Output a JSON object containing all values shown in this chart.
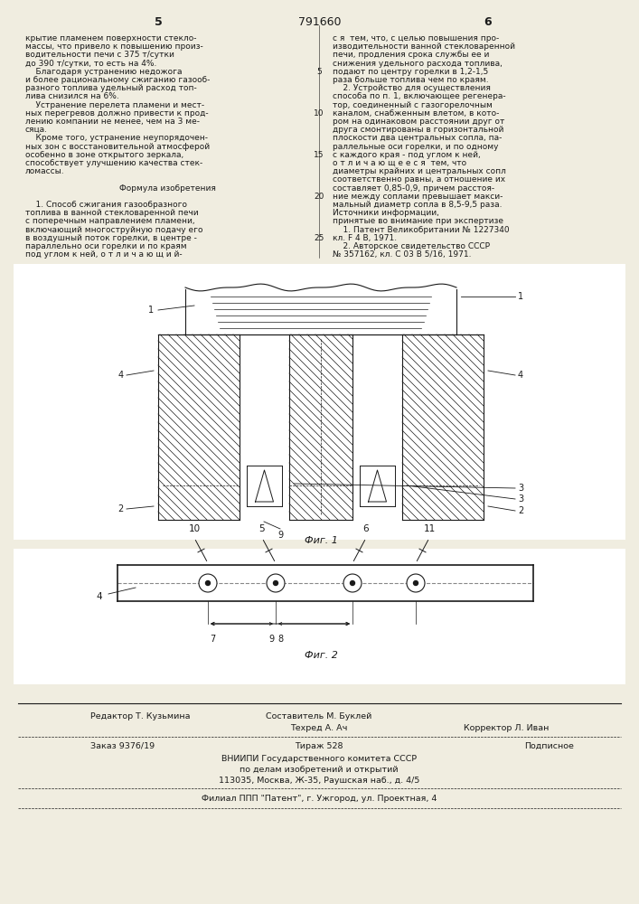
{
  "patent_number": "791660",
  "page_left": "5",
  "page_right": "6",
  "bg_color": "#f0ede0",
  "text_color": "#1a1a1a",
  "left_column_text": [
    "крытие пламенем поверхности стекло-",
    "массы, что привело к повышению произ-",
    "водительности печи с 375 т/сутки",
    "до 390 т/сутки, то есть на 4%.",
    "    Благодаря устранению недожога",
    "и более рациональному сжиганию газооб-",
    "разного топлива удельный расход топ-",
    "лива снизился на 6%.",
    "    Устранение перелета пламени и мест-",
    "ных перегревов должно привести к прод-",
    "лению компании не менее, чем на 3 ме-",
    "сяца.",
    "    Кроме того, устранение неупорядочен-",
    "ных зон с восстановительной атмосферой",
    "особенно в зоне открытого зеркала,",
    "способствует улучшению качества стек-",
    "ломассы.",
    "",
    "Формула изобретения",
    "",
    "    1. Способ сжигания газообразного",
    "топлива в ванной стекловаренной печи",
    "с поперечным направлением пламени,",
    "включающий многоструйную подачу его",
    "в воздушный поток горелки, в центре -",
    "параллельно оси горелки и по краям",
    "под углом к ней, о т л и ч а ю щ и й-"
  ],
  "right_column_text": [
    "с я  тем, что, с целью повышения про-",
    "изводительности ванной стекловаренной",
    "печи, продления срока службы ее и",
    "снижения удельного расхода топлива,",
    "подают по центру горелки в 1,2-1,5",
    "раза больше топлива чем по краям.",
    "    2. Устройство для осуществления",
    "способа по п. 1, включающее регенера-",
    "тор, соединенный с газогорелочным",
    "каналом, снабженным влетом, в кото-",
    "ром на одинаковом расстоянии друг от",
    "друга смонтированы в горизонтальной",
    "плоскости два центральных сопла, па-",
    "раллельные оси горелки, и по одному",
    "с каждого края - под углом к ней,",
    "о т л и ч а ю щ е е с я  тем, что",
    "диаметры крайних и центральных сопл",
    "соответственно равны, а отношение их",
    "составляет 0,85-0,9, причем расстоя-",
    "ние между соплами превышает макси-",
    "мальный диаметр сопла в 8,5-9,5 раза.",
    "Источники информации,",
    "принятые во внимание при экспертизе",
    "    1. Патент Великобритании № 1227340",
    "кл. F 4 В, 1971.",
    "    2. Авторское свидетельство СССР",
    "№ 357162, кл. С 03 В 5/16, 1971."
  ],
  "fig1_label": "Фиг. 1",
  "fig2_label": "Фиг. 2",
  "bottom_editor": "Редактор Т. Кузьмина",
  "bottom_compiler": "Составитель М. Буклей",
  "bottom_tech": "Техред А. Ач",
  "bottom_corrector": "Корректор Л. Иван",
  "bottom_order": "Заказ 9376/19",
  "bottom_circulation": "Тираж 528",
  "bottom_signed": "Подписное",
  "bottom_vnipi": "ВНИИПИ Государственного комитета СССР",
  "bottom_affairs": "по делам изобретений и открытий",
  "bottom_address": "113035, Москва, Ж-35, Раушская наб., д. 4/5",
  "bottom_branch": "Филиал ППП \"Патент\", г. Ужгород, ул. Проектная, 4"
}
